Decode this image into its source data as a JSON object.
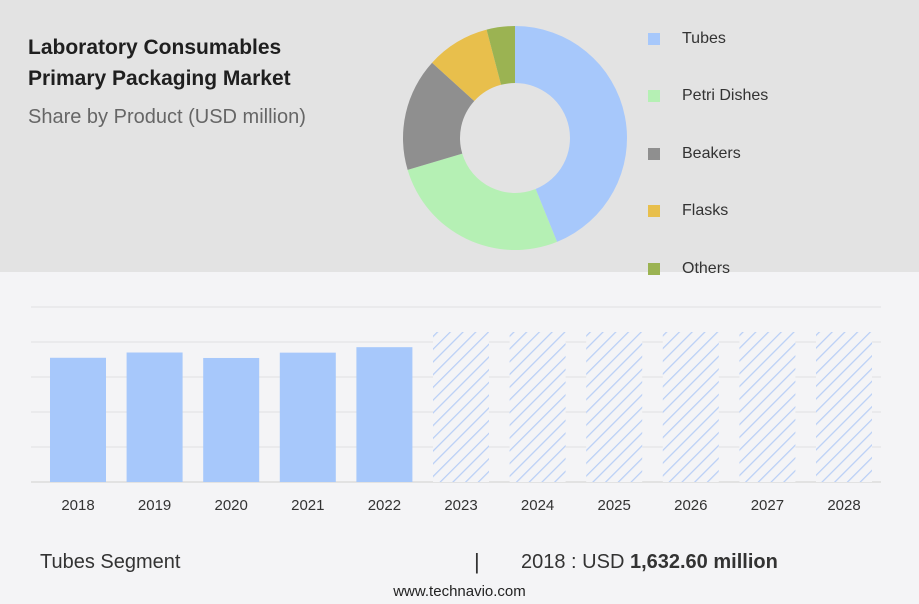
{
  "title_line1": "Laboratory Consumables",
  "title_line2": "Primary Packaging Market",
  "subtitle": "Share by Product (USD million)",
  "footer": {
    "segment_label": "Tubes Segment",
    "separator": "|",
    "year_text": "2018 : USD",
    "value_text": "1,632.60 million"
  },
  "website": "www.technavio.com",
  "chart_data": [
    {
      "type": "pie",
      "donut": true,
      "labels": [
        "Tubes",
        "Petri Dishes",
        "Beakers",
        "Flasks",
        "Others"
      ],
      "values": [
        43,
        26,
        16,
        9,
        4
      ],
      "colors": [
        "#a7c8fb",
        "#b5f0b4",
        "#8f8f8f",
        "#e8bf4c",
        "#9bb352"
      ],
      "legend_position": "right"
    },
    {
      "type": "bar",
      "categories": [
        "2018",
        "2019",
        "2020",
        "2021",
        "2022",
        "2023",
        "2024",
        "2025",
        "2026",
        "2027",
        "2028"
      ],
      "values": [
        1632.6,
        1702,
        1630,
        1700,
        1772,
        null,
        null,
        null,
        null,
        null,
        null
      ],
      "forecast_categories": [
        "2023",
        "2024",
        "2025",
        "2026",
        "2027",
        "2028"
      ],
      "ylim": [
        0,
        2300
      ],
      "grid": true,
      "bar_color": "#a7c8fb"
    }
  ]
}
